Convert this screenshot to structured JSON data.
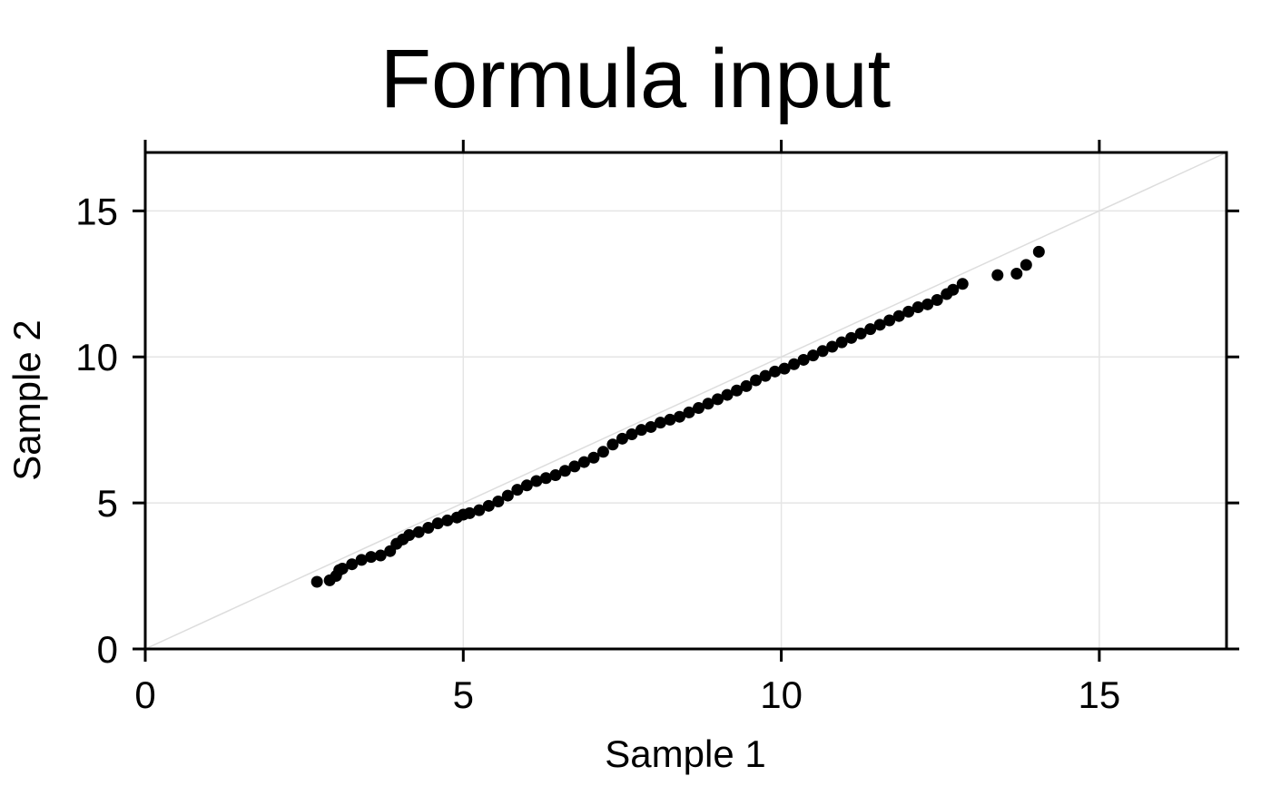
{
  "chart_data": {
    "type": "scatter",
    "title": "Formula input",
    "xlabel": "Sample 1",
    "ylabel": "Sample 2",
    "xlim": [
      0,
      17
    ],
    "ylim": [
      0,
      17
    ],
    "x_ticks": [
      0,
      5,
      10,
      15
    ],
    "y_ticks": [
      0,
      5,
      10,
      15
    ],
    "grid": true,
    "reference_line": {
      "from": [
        0,
        0
      ],
      "to": [
        17,
        17
      ]
    },
    "colors": {
      "points": "#000000",
      "grid": "#e5e5e5",
      "reference_line": "#dddddd",
      "frame": "#000000"
    },
    "points": {
      "x": [
        2.7,
        2.9,
        3.0,
        3.05,
        3.1,
        3.25,
        3.4,
        3.55,
        3.7,
        3.85,
        3.95,
        4.05,
        4.15,
        4.3,
        4.45,
        4.6,
        4.75,
        4.9,
        5.0,
        5.1,
        5.25,
        5.4,
        5.55,
        5.7,
        5.85,
        6.0,
        6.15,
        6.3,
        6.45,
        6.6,
        6.75,
        6.9,
        7.05,
        7.2,
        7.35,
        7.5,
        7.65,
        7.8,
        7.95,
        8.1,
        8.25,
        8.4,
        8.55,
        8.7,
        8.85,
        9.0,
        9.15,
        9.3,
        9.45,
        9.6,
        9.75,
        9.9,
        10.05,
        10.2,
        10.35,
        10.5,
        10.65,
        10.8,
        10.95,
        11.1,
        11.25,
        11.4,
        11.55,
        11.7,
        11.85,
        12.0,
        12.15,
        12.3,
        12.45,
        12.6,
        12.7,
        12.85,
        13.4,
        13.7,
        13.85,
        14.05
      ],
      "y": [
        2.3,
        2.35,
        2.5,
        2.7,
        2.75,
        2.9,
        3.05,
        3.15,
        3.2,
        3.35,
        3.6,
        3.75,
        3.9,
        4.0,
        4.15,
        4.3,
        4.4,
        4.5,
        4.6,
        4.65,
        4.75,
        4.9,
        5.05,
        5.25,
        5.45,
        5.6,
        5.75,
        5.85,
        5.95,
        6.1,
        6.25,
        6.4,
        6.55,
        6.75,
        7.0,
        7.2,
        7.35,
        7.5,
        7.6,
        7.75,
        7.85,
        7.95,
        8.1,
        8.25,
        8.4,
        8.55,
        8.7,
        8.85,
        9.0,
        9.2,
        9.35,
        9.5,
        9.6,
        9.75,
        9.9,
        10.05,
        10.2,
        10.35,
        10.5,
        10.65,
        10.8,
        10.95,
        11.1,
        11.25,
        11.4,
        11.55,
        11.7,
        11.8,
        11.95,
        12.15,
        12.3,
        12.5,
        12.8,
        12.85,
        13.15,
        13.6
      ]
    }
  }
}
